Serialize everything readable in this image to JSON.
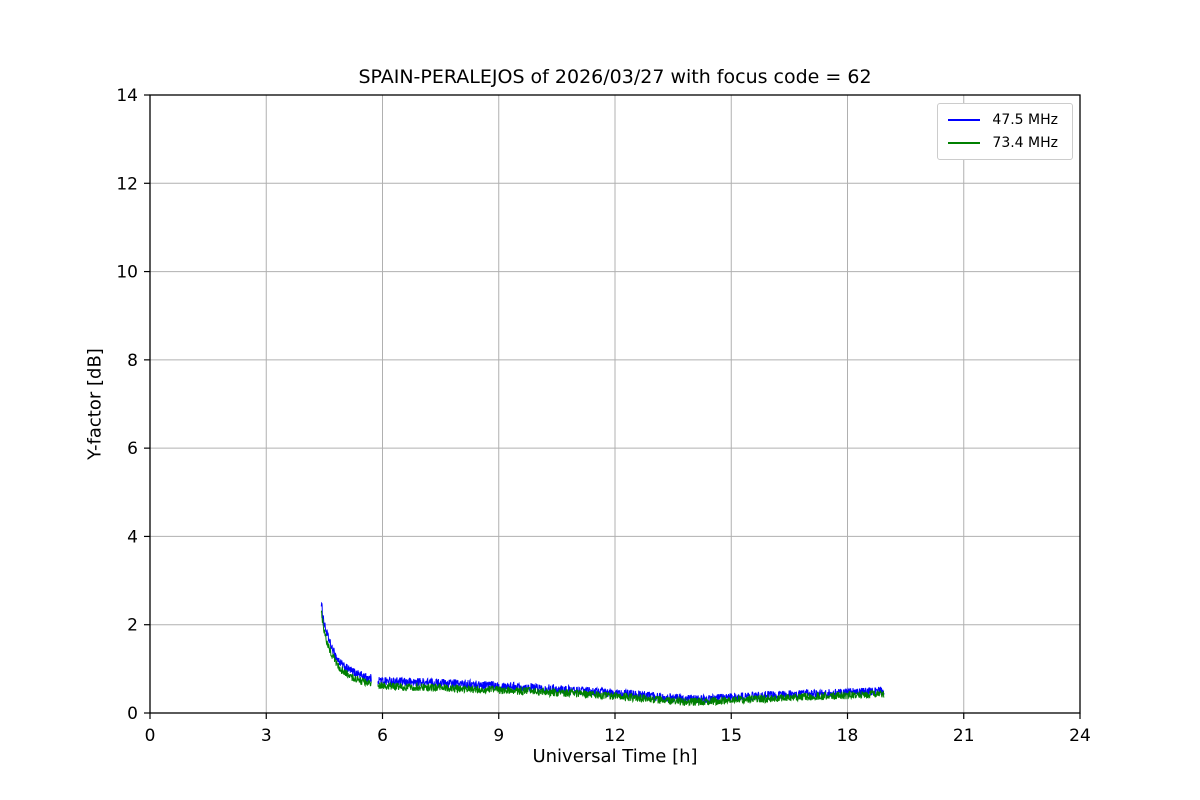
{
  "chart_data": {
    "type": "line",
    "title": "SPAIN-PERALEJOS of 2026/03/27 with focus code = 62",
    "xlabel": "Universal Time [h]",
    "ylabel": "Y-factor [dB]",
    "xlim": [
      0,
      24
    ],
    "ylim": [
      0,
      14
    ],
    "xticks": [
      0,
      3,
      6,
      9,
      12,
      15,
      18,
      21,
      24
    ],
    "yticks": [
      0,
      2,
      4,
      6,
      8,
      10,
      12,
      14
    ],
    "grid": true,
    "legend_position": "upper right",
    "colors": {
      "grid": "#b0b0b0",
      "axes": "#000000",
      "background": "#ffffff"
    },
    "series": [
      {
        "name": "47.5 MHz",
        "color": "#0000ff",
        "noise_amplitude": 0.1,
        "segments": [
          {
            "x": [
              4.42,
              4.45,
              4.5,
              4.6,
              4.7,
              4.85,
              5.0,
              5.2,
              5.4,
              5.6,
              5.72
            ],
            "y": [
              2.5,
              2.3,
              2.0,
              1.7,
              1.45,
              1.2,
              1.05,
              0.95,
              0.87,
              0.8,
              0.78
            ]
          },
          {
            "x": [
              5.88,
              6.0,
              6.5,
              7.0,
              7.5,
              8.0,
              8.5,
              9.0,
              9.5,
              10.0,
              10.5,
              11.0,
              11.5,
              12.0,
              12.5,
              13.0,
              13.5,
              14.0,
              14.5,
              15.0,
              15.5,
              16.0,
              16.5,
              17.0,
              17.5,
              18.0,
              18.5,
              18.95
            ],
            "y": [
              0.75,
              0.73,
              0.7,
              0.7,
              0.68,
              0.66,
              0.64,
              0.62,
              0.6,
              0.57,
              0.54,
              0.51,
              0.48,
              0.45,
              0.42,
              0.38,
              0.34,
              0.31,
              0.32,
              0.35,
              0.38,
              0.4,
              0.42,
              0.43,
              0.44,
              0.46,
              0.48,
              0.5
            ]
          }
        ]
      },
      {
        "name": "73.4 MHz",
        "color": "#008000",
        "noise_amplitude": 0.09,
        "segments": [
          {
            "x": [
              4.42,
              4.45,
              4.5,
              4.6,
              4.7,
              4.85,
              5.0,
              5.2,
              5.4,
              5.6,
              5.72
            ],
            "y": [
              2.35,
              2.12,
              1.82,
              1.52,
              1.3,
              1.06,
              0.92,
              0.82,
              0.74,
              0.68,
              0.66
            ]
          },
          {
            "x": [
              5.88,
              6.0,
              6.5,
              7.0,
              7.5,
              8.0,
              8.5,
              9.0,
              9.5,
              10.0,
              10.5,
              11.0,
              11.5,
              12.0,
              12.5,
              13.0,
              13.5,
              14.0,
              14.5,
              15.0,
              15.5,
              16.0,
              16.5,
              17.0,
              17.5,
              18.0,
              18.5,
              18.95
            ],
            "y": [
              0.63,
              0.61,
              0.59,
              0.58,
              0.57,
              0.55,
              0.53,
              0.52,
              0.5,
              0.48,
              0.46,
              0.44,
              0.41,
              0.38,
              0.35,
              0.31,
              0.27,
              0.25,
              0.26,
              0.29,
              0.31,
              0.33,
              0.35,
              0.37,
              0.38,
              0.4,
              0.42,
              0.44
            ]
          }
        ]
      }
    ]
  }
}
